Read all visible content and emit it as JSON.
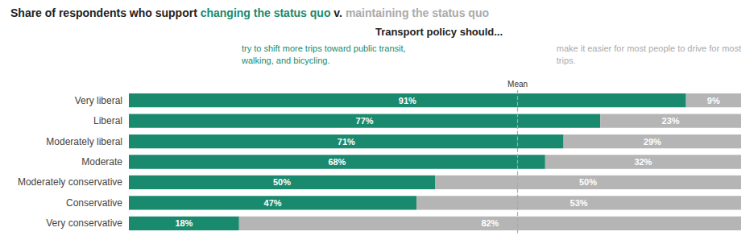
{
  "chart_data": {
    "type": "bar",
    "orientation": "horizontal",
    "stacked": true,
    "data_labels": true,
    "grid": false,
    "tick_labels": "y",
    "title": "Transport policy should...",
    "subtitle": [
      {
        "text": "Share of respondents who support ",
        "color": "#222222"
      },
      {
        "text": "changing the status quo",
        "color": "#1a8a6e"
      },
      {
        "text": " v. ",
        "color": "#222222"
      },
      {
        "text": "maintaining the status quo",
        "color": "#aaaaaa"
      }
    ],
    "categories": [
      "Very liberal",
      "Liberal",
      "Moderately liberal",
      "Moderate",
      "Moderately conservative",
      "Conservative",
      "Very conservative"
    ],
    "series": [
      {
        "color": "#1a8a6e",
        "values": [
          91,
          77,
          71,
          68,
          50,
          47,
          18
        ],
        "value_labels": [
          "91%",
          "77%",
          "71%",
          "68%",
          "50%",
          "47%",
          "18%"
        ]
      },
      {
        "color": "#b5b5b5",
        "values": [
          9,
          23,
          29,
          32,
          50,
          53,
          82
        ],
        "value_labels": [
          "9%",
          "23%",
          "29%",
          "32%",
          "50%",
          "53%",
          "82%"
        ]
      }
    ],
    "xlim": [
      0,
      100
    ],
    "reference_lines": [
      {
        "x": 63.5,
        "label": "Mean",
        "color": "#aaaaaa",
        "line_style": "dashed"
      }
    ],
    "annotations": [
      {
        "text": "try to shift more trips toward public transit,\nwalking, and bicycling.",
        "color": "#1a8a6e"
      },
      {
        "text": "make it easier for most people to drive for most\ntrips.",
        "color": "#aaaaaa"
      }
    ]
  }
}
